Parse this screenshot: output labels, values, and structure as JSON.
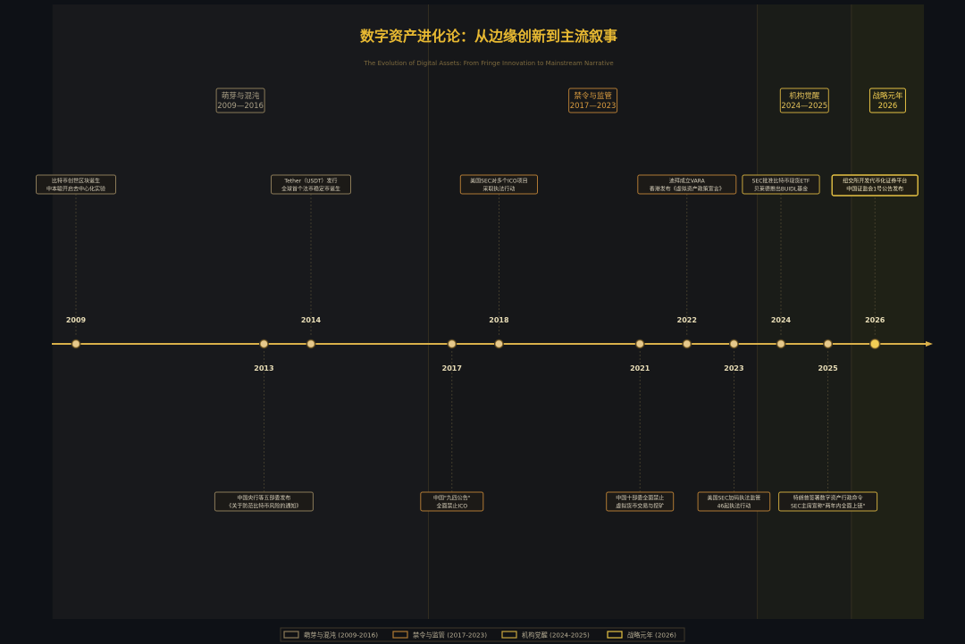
{
  "title": "数字资产进化论：从边缘创新到主流叙事",
  "subtitle": "The Evolution of Digital Assets: From Fringe Innovation to Mainstream Narrative",
  "colors": {
    "background": "#0e1116",
    "panel": "#17181b",
    "gold": "#e0b84a",
    "gold_bright": "#f2cd55",
    "brown": "#9a7038",
    "axis": "#d9b04a",
    "muted_text": "#c9c3b3"
  },
  "chart_data": {
    "type": "timeline",
    "xlim": [
      2008.5,
      2027.2
    ],
    "phases": [
      {
        "id": "p1",
        "label": "萌芽与混沌",
        "years_label": "2009—2016",
        "start": 2008.5,
        "end": 2016.5,
        "fill": "#18191c",
        "border": "#8a7a58",
        "text": "#a99f86"
      },
      {
        "id": "p2",
        "label": "禁令与监管",
        "years_label": "2017—2023",
        "start": 2016.5,
        "end": 2023.5,
        "fill": "#161719",
        "border": "#b07a34",
        "text": "#d79a3f"
      },
      {
        "id": "p3",
        "label": "机构觉醒",
        "years_label": "2024—2025",
        "start": 2023.5,
        "end": 2025.5,
        "fill": "#1a1c18",
        "border": "#c8a63e",
        "text": "#e2c05a"
      },
      {
        "id": "p4",
        "label": "战略元年",
        "years_label": "2026",
        "start": 2025.5,
        "end": 2027.2,
        "fill": "#1f2116",
        "border": "#e6c244",
        "text": "#f3cf52"
      }
    ],
    "events": [
      {
        "year": 2009,
        "x": 2009,
        "side": "top",
        "phase": "p1",
        "lines": [
          "比特币创世区块诞生",
          "中本聪开启去中心化实验"
        ]
      },
      {
        "year": 2013,
        "x": 2013,
        "side": "bottom",
        "phase": "p1",
        "lines": [
          "中国央行等五部委发布",
          "《关于防范比特币风险的通知》"
        ]
      },
      {
        "year": 2014,
        "x": 2014,
        "side": "top",
        "phase": "p1",
        "lines": [
          "Tether（USDT）发行",
          "全球首个法币稳定币诞生"
        ]
      },
      {
        "year": 2017,
        "x": 2017,
        "side": "bottom",
        "phase": "p2",
        "lines": [
          "中国\"九四公告\"",
          "全面禁止ICO"
        ]
      },
      {
        "year": 2018,
        "x": 2018,
        "side": "top",
        "phase": "p2",
        "lines": [
          "美国SEC对多个ICO项目",
          "采取执法行动"
        ]
      },
      {
        "year": 2021,
        "x": 2021,
        "side": "bottom",
        "phase": "p2",
        "lines": [
          "中国十部委全面禁止",
          "虚拟货币交易与挖矿"
        ]
      },
      {
        "year": 2022,
        "x": 2022,
        "side": "top",
        "phase": "p2",
        "lines": [
          "迪拜成立VARA",
          "香港发布《虚拟资产政策宣言》"
        ]
      },
      {
        "year": 2023,
        "x": 2023,
        "side": "bottom",
        "phase": "p2",
        "lines": [
          "美国SEC加码执法监管",
          "46起执法行动"
        ]
      },
      {
        "year": 2024,
        "x": 2024,
        "side": "top",
        "phase": "p3",
        "lines": [
          "SEC批准比特币现货ETF",
          "贝莱德推出BUIDL基金"
        ]
      },
      {
        "year": 2025,
        "x": 2025,
        "side": "bottom",
        "phase": "p3",
        "lines": [
          "特朗普签署数字资产行政命令",
          "SEC主席宣称\"两年内全面上链\""
        ]
      },
      {
        "year": 2026,
        "x": 2026,
        "side": "top",
        "phase": "p4",
        "lines": [
          "纽交所开发代币化证券平台",
          "中国证监会1号公告发布"
        ]
      }
    ],
    "legend": [
      {
        "phase": "p1",
        "label": "萌芽与混沌 (2009-2016)"
      },
      {
        "phase": "p2",
        "label": "禁令与监管 (2017-2023)"
      },
      {
        "phase": "p3",
        "label": "机构觉醒 (2024-2025)"
      },
      {
        "phase": "p4",
        "label": "战略元年 (2026)"
      }
    ]
  }
}
